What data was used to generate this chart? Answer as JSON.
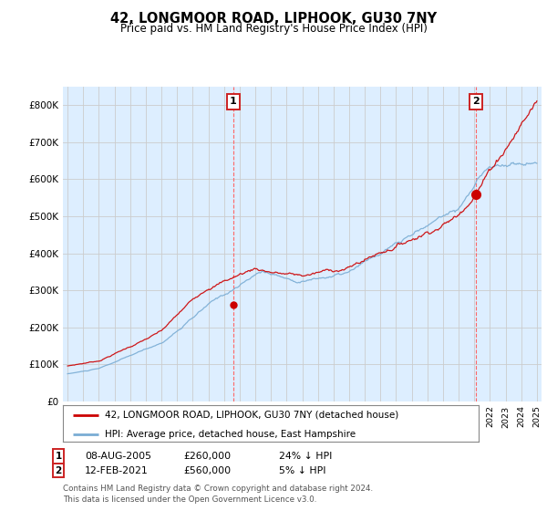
{
  "title": "42, LONGMOOR ROAD, LIPHOOK, GU30 7NY",
  "subtitle": "Price paid vs. HM Land Registry's House Price Index (HPI)",
  "sale1_date": "08-AUG-2005",
  "sale1_price": 260000,
  "sale1_label": "24% ↓ HPI",
  "sale2_date": "12-FEB-2021",
  "sale2_price": 560000,
  "sale2_label": "5% ↓ HPI",
  "legend_red": "42, LONGMOOR ROAD, LIPHOOK, GU30 7NY (detached house)",
  "legend_blue": "HPI: Average price, detached house, East Hampshire",
  "footnote": "Contains HM Land Registry data © Crown copyright and database right 2024.\nThis data is licensed under the Open Government Licence v3.0.",
  "red_color": "#cc0000",
  "blue_color": "#7aadd4",
  "fill_color": "#ddeeff",
  "dashed_color": "#ff6666",
  "background_color": "#ffffff",
  "grid_color": "#cccccc",
  "ylim": [
    0,
    850000
  ],
  "yticks": [
    0,
    100000,
    200000,
    300000,
    400000,
    500000,
    600000,
    700000,
    800000
  ],
  "sale1_x": 2005.6,
  "sale2_x": 2021.1,
  "xlim_left": 1995.0,
  "xlim_right": 2025.0
}
